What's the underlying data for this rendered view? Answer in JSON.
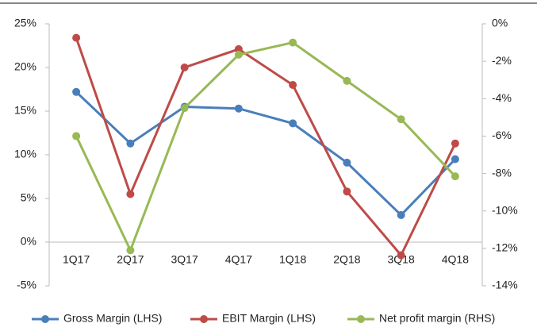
{
  "chart_data": {
    "type": "line",
    "categories": [
      "1Q17",
      "2Q17",
      "3Q17",
      "4Q17",
      "1Q18",
      "2Q18",
      "3Q18",
      "4Q18"
    ],
    "series": [
      {
        "name": "Gross Margin (LHS)",
        "color": "#4a7ebb",
        "values": [
          17.2,
          11.3,
          15.5,
          15.3,
          13.6,
          9.1,
          3.1,
          9.5
        ]
      },
      {
        "name": "EBIT Margin (LHS)",
        "color": "#be4b48",
        "values": [
          23.4,
          5.5,
          20.0,
          22.1,
          18.0,
          5.8,
          -1.5,
          11.3
        ]
      },
      {
        "name": "Net profit margin (RHS)",
        "color": "#98b954",
        "axis": "y2",
        "values": [
          -6.0,
          -12.1,
          -4.5,
          -1.65,
          -1.0,
          -3.05,
          -5.1,
          -8.15
        ]
      }
    ],
    "ylim": [
      -5,
      25
    ],
    "yticks": [
      {
        "value": -5,
        "label": "-5%"
      },
      {
        "value": 0,
        "label": "0%"
      },
      {
        "value": 5,
        "label": "5%"
      },
      {
        "value": 10,
        "label": "10%"
      },
      {
        "value": 15,
        "label": "15%"
      },
      {
        "value": 20,
        "label": "20%"
      },
      {
        "value": 25,
        "label": "25%"
      }
    ],
    "y2lim": [
      -14,
      0
    ],
    "y2ticks": [
      {
        "value": -14,
        "label": "-14%"
      },
      {
        "value": -12,
        "label": "-12%"
      },
      {
        "value": -10,
        "label": "-10%"
      },
      {
        "value": -8,
        "label": "-8%"
      },
      {
        "value": -6,
        "label": "-6%"
      },
      {
        "value": -4,
        "label": "-4%"
      },
      {
        "value": -2,
        "label": "-2%"
      },
      {
        "value": 0,
        "label": "0%"
      }
    ],
    "grid": false,
    "legend": "bottom"
  }
}
